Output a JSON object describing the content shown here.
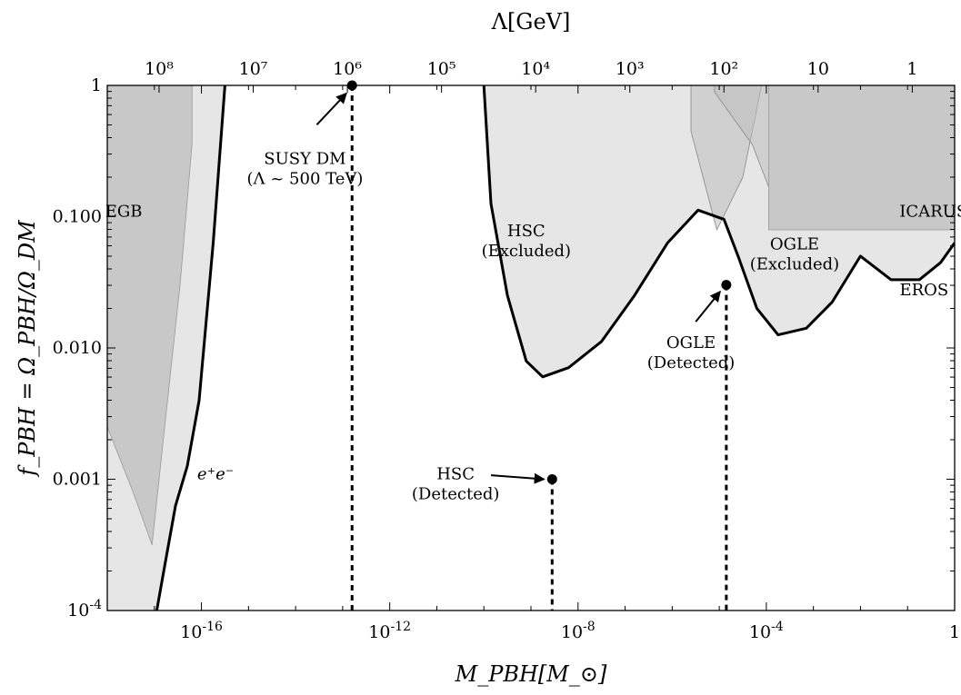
{
  "chart_data": {
    "type": "area",
    "xlabel": "M_PBH[M_⊙]",
    "ylabel": "f_PBH = Ω_PBH/Ω_DM",
    "top_label": "Λ[GeV]",
    "x_scale": "log",
    "y_scale": "log",
    "xlim_log10": [
      -18,
      0
    ],
    "ylim_log10": [
      -4,
      0
    ],
    "x_ticks": [
      {
        "log10": -16,
        "label": "10-16"
      },
      {
        "log10": -12,
        "label": "10-12"
      },
      {
        "log10": -8,
        "label": "10-8"
      },
      {
        "log10": -4,
        "label": "10-4"
      },
      {
        "log10": 0,
        "label": "1"
      }
    ],
    "y_ticks": [
      {
        "log10": 0,
        "label": "1"
      },
      {
        "log10": -1,
        "label": "0.100"
      },
      {
        "log10": -2,
        "label": "0.010"
      },
      {
        "log10": -3,
        "label": "0.001"
      },
      {
        "log10": -4,
        "label": "10-4"
      }
    ],
    "top_ticks": [
      {
        "x_log10": -16.9,
        "label": "10⁸"
      },
      {
        "x_log10": -14.9,
        "label": "10⁷"
      },
      {
        "x_log10": -12.9,
        "label": "10⁶"
      },
      {
        "x_log10": -10.9,
        "label": "10⁵"
      },
      {
        "x_log10": -8.9,
        "label": "10⁴"
      },
      {
        "x_log10": -6.9,
        "label": "10³"
      },
      {
        "x_log10": -4.9,
        "label": "10²"
      },
      {
        "x_log10": -2.9,
        "label": "10"
      },
      {
        "x_log10": -0.9,
        "label": "1"
      }
    ],
    "series": [
      {
        "name": "EGB",
        "role": "dark-region",
        "points": [
          [
            -18,
            0
          ],
          [
            -16.2,
            0
          ],
          [
            -16.2,
            -0.45
          ],
          [
            -16.45,
            -1.5
          ],
          [
            -16.75,
            -2.5
          ],
          [
            -17.05,
            -3.5
          ],
          [
            -17.45,
            -3.1
          ],
          [
            -18,
            -2.6
          ]
        ]
      },
      {
        "name": "e⁺e⁻",
        "role": "light-region",
        "points": [
          [
            -18,
            0
          ],
          [
            -15.5,
            0
          ],
          [
            -15.75,
            -1.2
          ],
          [
            -16.05,
            -2.4
          ],
          [
            -16.3,
            -2.9
          ],
          [
            -16.55,
            -3.2
          ],
          [
            -16.75,
            -3.6
          ],
          [
            -16.95,
            -4
          ],
          [
            -18,
            -4
          ]
        ]
      },
      {
        "name": "HSC (Excluded)",
        "role": "light-region",
        "points": [
          [
            -10,
            0
          ],
          [
            -9.85,
            -0.9
          ],
          [
            -9.5,
            -1.6
          ],
          [
            -9.1,
            -2.1
          ],
          [
            -8.75,
            -2.22
          ],
          [
            -8.2,
            -2.15
          ],
          [
            -7.5,
            -1.95
          ],
          [
            -6.8,
            -1.6
          ],
          [
            -6.1,
            -1.2
          ],
          [
            -5.45,
            -0.95
          ],
          [
            -4.9,
            -1.02
          ],
          [
            -4.6,
            -1.3
          ],
          [
            -4.2,
            -1.7
          ],
          [
            -3.75,
            -1.9
          ],
          [
            -3.15,
            -1.85
          ],
          [
            -2.6,
            -1.65
          ],
          [
            -2,
            -1.3
          ],
          [
            -1.35,
            -1.48
          ],
          [
            -0.75,
            -1.48
          ],
          [
            -0.3,
            -1.35
          ],
          [
            0,
            -1.2
          ],
          [
            0,
            0
          ]
        ]
      },
      {
        "name": "OGLE (Excluded)",
        "role": "mid-region",
        "points": [
          [
            -5.6,
            0
          ],
          [
            -4.1,
            0
          ],
          [
            -4.5,
            -0.7
          ],
          [
            -5.05,
            -1.1
          ],
          [
            -5.6,
            -0.35
          ]
        ]
      },
      {
        "name": "EROS",
        "role": "mid-region",
        "points": [
          [
            -5.1,
            0
          ],
          [
            -0.15,
            0
          ],
          [
            -0.6,
            -0.6
          ],
          [
            -1.5,
            -1.0
          ],
          [
            -2.8,
            -0.92
          ],
          [
            -3.9,
            -0.82
          ],
          [
            -4.3,
            -0.45
          ],
          [
            -5.1,
            -0.05
          ]
        ]
      },
      {
        "name": "ICARUS",
        "role": "dark-region",
        "points": [
          [
            -3.95,
            0
          ],
          [
            0,
            0
          ],
          [
            0,
            -1.1
          ],
          [
            -3.95,
            -1.1
          ]
        ]
      }
    ],
    "points": [
      {
        "name": "SUSY DM",
        "x_log10": -12.8,
        "y_log10": 0
      },
      {
        "name": "HSC (Detected)",
        "x_log10": -8.55,
        "y_log10": -3
      },
      {
        "name": "OGLE (Detected)",
        "x_log10": -4.85,
        "y_log10": -1.52
      }
    ],
    "annotations": [
      {
        "name": "egb",
        "lines": [
          "EGB"
        ],
        "x_log10": -17.65,
        "y_log10": -1.0
      },
      {
        "name": "ee",
        "lines": [
          "e⁺e⁻"
        ],
        "x_log10": -15.7,
        "y_log10": -3.0
      },
      {
        "name": "susy",
        "lines": [
          "SUSY DM",
          "(Λ ~ 500 TeV)"
        ],
        "x_log10": -13.8,
        "y_log10": -0.6
      },
      {
        "name": "hsc-excl",
        "lines": [
          "HSC",
          "(Excluded)"
        ],
        "x_log10": -9.1,
        "y_log10": -1.15
      },
      {
        "name": "hsc-det",
        "lines": [
          "HSC",
          "(Detected)"
        ],
        "x_log10": -10.6,
        "y_log10": -3.0
      },
      {
        "name": "ogle-det",
        "lines": [
          "OGLE",
          "(Detected)"
        ],
        "x_log10": -5.6,
        "y_log10": -2.0
      },
      {
        "name": "ogle-excl",
        "lines": [
          "OGLE",
          "(Excluded)"
        ],
        "x_log10": -3.4,
        "y_log10": -1.25
      },
      {
        "name": "icarus",
        "lines": [
          "ICARUS"
        ],
        "x_log10": -0.45,
        "y_log10": -1.0
      },
      {
        "name": "eros",
        "lines": [
          "EROS"
        ],
        "x_log10": -0.65,
        "y_log10": -1.6
      }
    ]
  }
}
